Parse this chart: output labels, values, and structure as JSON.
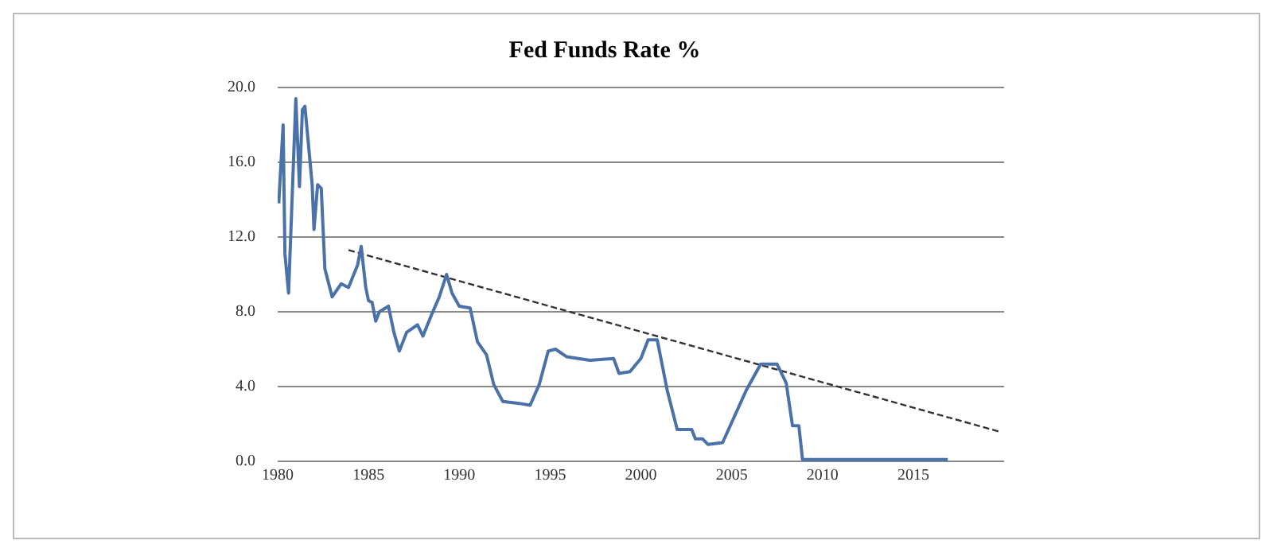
{
  "chart_data": {
    "type": "line",
    "title": "Fed Funds Rate %",
    "xlim": [
      1980,
      2020
    ],
    "xticks": [
      1980,
      1985,
      1990,
      1995,
      2000,
      2005,
      2010,
      2015
    ],
    "ylim": [
      0,
      20
    ],
    "yticks": [
      {
        "value": 0,
        "label": "0.0"
      },
      {
        "value": 4,
        "label": "4.0"
      },
      {
        "value": 8,
        "label": "8.0"
      },
      {
        "value": 12,
        "label": "12.0"
      },
      {
        "value": 16,
        "label": "16.0"
      },
      {
        "value": 20,
        "label": "20.0"
      }
    ],
    "grid": "y",
    "legend": false,
    "marker": "none",
    "series": [
      {
        "color": "#4a72a8",
        "line_style": "solid",
        "x": [
          1980.06,
          1980.3,
          1980.4,
          1980.6,
          1981.0,
          1981.2,
          1981.36,
          1981.5,
          1981.9,
          1982.0,
          1982.2,
          1982.4,
          1982.6,
          1983.0,
          1983.5,
          1983.9,
          1984.4,
          1984.6,
          1984.85,
          1985.0,
          1985.2,
          1985.4,
          1985.6,
          1986.1,
          1986.4,
          1986.7,
          1987.1,
          1987.7,
          1988.0,
          1988.5,
          1988.9,
          1989.3,
          1989.6,
          1990.0,
          1990.6,
          1991.0,
          1991.5,
          1991.9,
          1992.4,
          1993.3,
          1993.9,
          1994.4,
          1994.9,
          1995.3,
          1995.9,
          1997.2,
          1998.5,
          1998.8,
          1999.4,
          2000.0,
          2000.4,
          2000.9,
          2001.45,
          2002.0,
          2002.8,
          2003.0,
          2003.4,
          2003.7,
          2004.5,
          2005.8,
          2006.6,
          2007.5,
          2008.0,
          2008.35,
          2008.7,
          2008.9,
          2010.3,
          2012.0,
          2015.2,
          2016.9
        ],
        "values": [
          13.8,
          18.0,
          11.1,
          9.0,
          19.4,
          14.7,
          18.8,
          19.0,
          14.8,
          12.4,
          14.8,
          14.6,
          10.3,
          8.8,
          9.5,
          9.3,
          10.5,
          11.5,
          9.3,
          8.6,
          8.5,
          7.5,
          8.0,
          8.3,
          6.9,
          5.9,
          6.9,
          7.3,
          6.7,
          7.9,
          8.8,
          10.0,
          9.0,
          8.3,
          8.2,
          6.4,
          5.7,
          4.1,
          3.2,
          3.1,
          3.0,
          4.1,
          5.9,
          6.0,
          5.6,
          5.4,
          5.5,
          4.7,
          4.8,
          5.5,
          6.5,
          6.5,
          3.8,
          1.7,
          1.7,
          1.2,
          1.2,
          0.9,
          1.0,
          3.8,
          5.2,
          5.2,
          4.2,
          1.9,
          1.9,
          0.1,
          0.1,
          0.1,
          0.1,
          0.1
        ]
      },
      {
        "type": "line",
        "color": "#333333",
        "line_style": "dashed",
        "x": [
          1983.9,
          2019.7
        ],
        "values": [
          11.3,
          1.6
        ]
      }
    ]
  }
}
